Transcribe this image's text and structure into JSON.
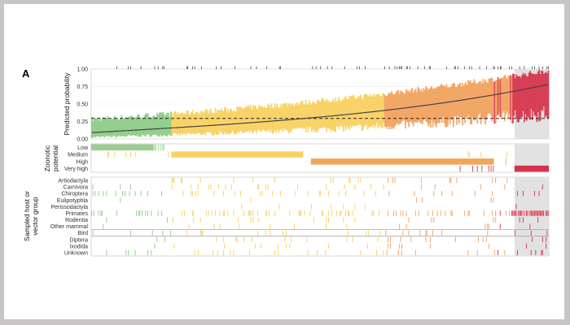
{
  "figure": {
    "panel_letter": "A"
  },
  "chart_data": {
    "type": "line",
    "n_viruses": 400,
    "series": [
      {
        "name": "",
        "description": "median predicted probability (line) with interval band, viruses ranked by rank"
      }
    ],
    "ylabel": "Predicted probability",
    "yticks": [
      "0.00",
      "0.25",
      "0.50",
      "0.75",
      "1.00"
    ],
    "ylim": [
      0,
      1
    ],
    "threshold": 0.293,
    "median_start": 0.09,
    "median_end": 0.78,
    "band_upper_start": 0.28,
    "band_upper_end": 0.98,
    "category_bounds": [
      0.0,
      0.175,
      0.64,
      1.0
    ],
    "highlight_rank_fraction_start": 0.925,
    "potential": {
      "ylabel": "Zoonotic potential",
      "levels": [
        "Low",
        "Medium",
        "High",
        "Very high"
      ],
      "colors": [
        "#9acd8e",
        "#f7d26a",
        "#f2a65a",
        "#d6324a"
      ]
    },
    "groups": {
      "ylabel": "Sampled host or vector group",
      "labels": [
        "Artiodactyla",
        "Carnivora",
        "Chiroptera",
        "Eulipotyphla",
        "Perissodactyla",
        "Primates",
        "Rodentia",
        "Other mammal",
        "Bird",
        "Diptera",
        "Ixodida",
        "Unknown"
      ],
      "density": [
        0.07,
        0.05,
        0.12,
        0.02,
        0.02,
        0.26,
        0.08,
        0.04,
        0.09,
        0.06,
        0.03,
        0.09
      ]
    },
    "grid": true,
    "background_highlight": "#e2e2e2"
  }
}
